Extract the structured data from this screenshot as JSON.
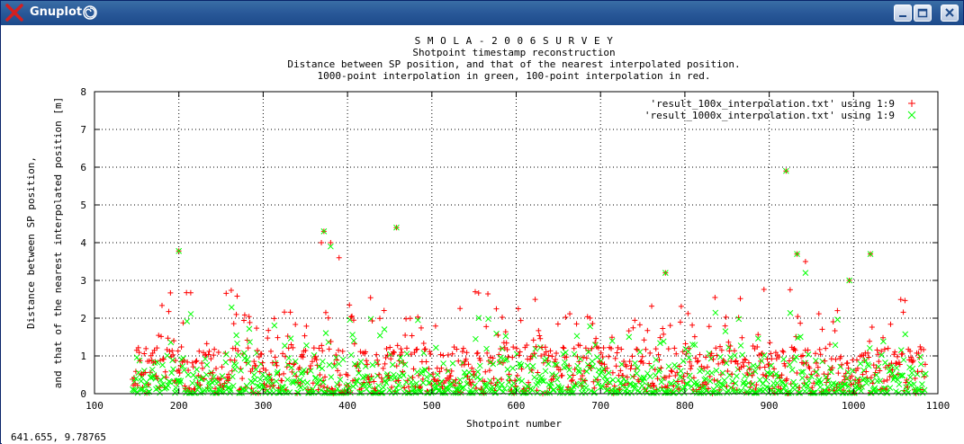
{
  "window": {
    "title": "Gnuplot",
    "status_coords": "641.655,  9.78765",
    "title_color": "#ffffff"
  },
  "chart_data": {
    "type": "scatter",
    "title_lines": [
      "S M O L A - 2 0 0 6   S U R V E Y",
      "Shotpoint timestamp reconstruction",
      "Distance between SP position, and that of the nearest interpolated position.",
      "1000-point interpolation in green, 100-point interpolation in red."
    ],
    "xlabel": "Shotpoint number",
    "ylabel_lines": [
      "Distance between SP position,",
      "and that of the nearest interpolated position [m]"
    ],
    "xlim": [
      100,
      1100
    ],
    "ylim": [
      0,
      8
    ],
    "xticks": [
      100,
      200,
      300,
      400,
      500,
      600,
      700,
      800,
      900,
      1000,
      1100
    ],
    "yticks": [
      0,
      1,
      2,
      3,
      4,
      5,
      6,
      7,
      8
    ],
    "grid": true,
    "legend_position": "top-right",
    "point_sample_count": 940,
    "point_x_range": [
      145,
      1085
    ],
    "series": [
      {
        "name": "'result_100x_interpolation.txt' using 1:9",
        "marker": "+",
        "color": "#ff0000",
        "outliers": [
          {
            "x": 200,
            "y": 3.78
          },
          {
            "x": 369,
            "y": 4.0
          },
          {
            "x": 372,
            "y": 4.3
          },
          {
            "x": 380,
            "y": 4.0
          },
          {
            "x": 390,
            "y": 3.6
          },
          {
            "x": 458,
            "y": 4.4
          },
          {
            "x": 920,
            "y": 5.9
          },
          {
            "x": 933,
            "y": 3.7
          },
          {
            "x": 943,
            "y": 3.5
          },
          {
            "x": 1020,
            "y": 3.7
          },
          {
            "x": 777,
            "y": 3.2
          },
          {
            "x": 995,
            "y": 3.0
          }
        ]
      },
      {
        "name": "'result_1000x_interpolation.txt' using 1:9",
        "marker": "x",
        "color": "#00ff00",
        "outliers": [
          {
            "x": 200,
            "y": 3.78
          },
          {
            "x": 372,
            "y": 4.3
          },
          {
            "x": 380,
            "y": 3.9
          },
          {
            "x": 458,
            "y": 4.4
          },
          {
            "x": 920,
            "y": 5.9
          },
          {
            "x": 933,
            "y": 3.7
          },
          {
            "x": 943,
            "y": 3.2
          },
          {
            "x": 1020,
            "y": 3.7
          },
          {
            "x": 777,
            "y": 3.2
          },
          {
            "x": 995,
            "y": 3.0
          }
        ]
      }
    ]
  }
}
